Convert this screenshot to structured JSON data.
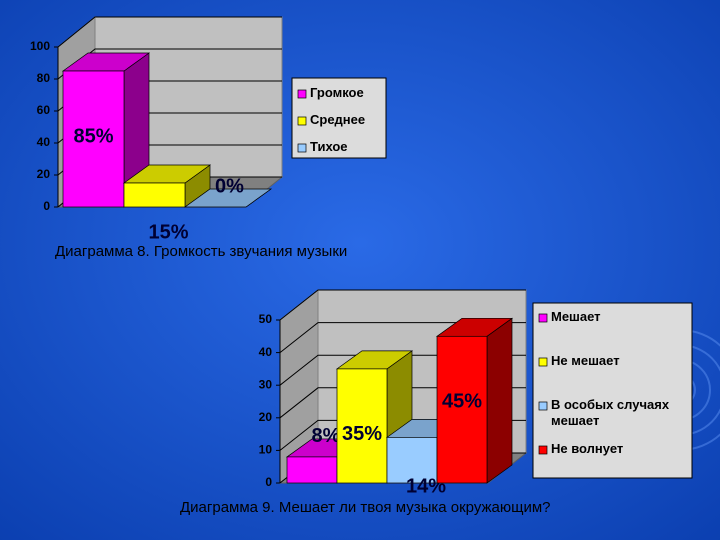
{
  "chart_data": [
    {
      "type": "bar",
      "caption": "Диаграмма 8. Громкость звучания музыки",
      "ylim": [
        0,
        100
      ],
      "yticks": [
        0,
        20,
        40,
        60,
        80,
        100
      ],
      "series": [
        {
          "name": "Громкое",
          "color": "#ff00ff",
          "values": [
            85
          ],
          "value_labels": [
            "85%"
          ]
        },
        {
          "name": "Среднее",
          "color": "#ffff00",
          "values": [
            15
          ],
          "value_labels": [
            "15%"
          ]
        },
        {
          "name": "Тихое",
          "color": "#99ccff",
          "values": [
            0
          ],
          "value_labels": [
            "0%"
          ]
        }
      ]
    },
    {
      "type": "bar",
      "caption": "Диаграмма 9. Мешает ли твоя музыка окружающим?",
      "ylim": [
        0,
        50
      ],
      "yticks": [
        0,
        10,
        20,
        30,
        40,
        50
      ],
      "series": [
        {
          "name": "Мешает",
          "color": "#ff00ff",
          "values": [
            8
          ],
          "value_labels": [
            "8%"
          ]
        },
        {
          "name": "Не мешает",
          "color": "#ffff00",
          "values": [
            35
          ],
          "value_labels": [
            "35%"
          ]
        },
        {
          "name": "В особых случаях мешает",
          "color": "#99ccff",
          "values": [
            14
          ],
          "value_labels": [
            "14%"
          ]
        },
        {
          "name": "Не волнует",
          "color": "#ff0000",
          "values": [
            45
          ],
          "value_labels": [
            "45%"
          ]
        }
      ]
    }
  ]
}
